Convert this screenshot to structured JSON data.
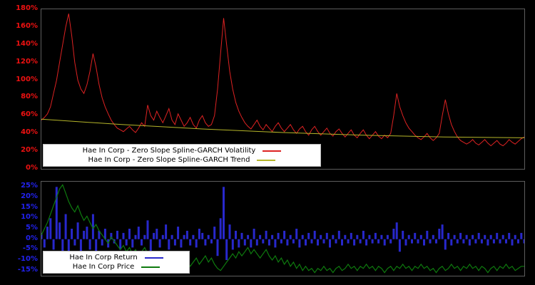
{
  "page": {
    "background": "#000000",
    "panel_border": "#5d5d5d"
  },
  "chart_data": [
    {
      "name": "volatility-chart",
      "type": "line",
      "ylim": [
        0,
        180
      ],
      "ytick_values": [
        0,
        20,
        40,
        60,
        80,
        100,
        120,
        140,
        160,
        180
      ],
      "ytick_labels": [
        "0%",
        "20%",
        "40%",
        "60%",
        "80%",
        "100%",
        "120%",
        "140%",
        "160%",
        "180%"
      ],
      "tick_color": "#ee1111",
      "grid": false,
      "legend_position": "bottom-left",
      "legend": [
        {
          "label": "Hae In Corp - Zero Slope Spline-GARCH Volatility",
          "color": "#dd2222"
        },
        {
          "label": "Hae In Corp - Zero Slope Spline-GARCH Trend",
          "color": "#b5b529"
        }
      ],
      "series": [
        {
          "name": "volatility",
          "render": "line",
          "color": "#dd2222",
          "width": 1,
          "values": [
            55,
            58,
            62,
            70,
            85,
            100,
            120,
            140,
            160,
            175,
            150,
            120,
            100,
            90,
            85,
            95,
            110,
            130,
            115,
            95,
            80,
            70,
            62,
            55,
            50,
            46,
            44,
            42,
            45,
            48,
            44,
            41,
            46,
            52,
            48,
            72,
            60,
            55,
            65,
            58,
            52,
            60,
            68,
            55,
            50,
            62,
            55,
            48,
            52,
            58,
            50,
            46,
            55,
            60,
            52,
            48,
            50,
            60,
            90,
            130,
            170,
            140,
            110,
            90,
            75,
            65,
            58,
            52,
            48,
            45,
            50,
            55,
            48,
            44,
            50,
            46,
            42,
            48,
            52,
            46,
            42,
            46,
            50,
            44,
            40,
            45,
            48,
            42,
            38,
            44,
            48,
            42,
            38,
            42,
            46,
            40,
            37,
            42,
            45,
            40,
            36,
            40,
            44,
            38,
            35,
            40,
            44,
            38,
            34,
            38,
            42,
            37,
            34,
            38,
            35,
            40,
            60,
            85,
            70,
            60,
            52,
            46,
            42,
            38,
            35,
            33,
            36,
            40,
            35,
            32,
            35,
            40,
            60,
            78,
            62,
            50,
            42,
            36,
            32,
            30,
            28,
            30,
            33,
            29,
            27,
            30,
            33,
            29,
            26,
            29,
            32,
            28,
            26,
            29,
            33,
            30,
            28,
            31,
            34,
            36
          ]
        },
        {
          "name": "trend",
          "render": "line",
          "color": "#b5b529",
          "width": 1,
          "values": [
            56,
            50,
            45,
            41,
            38,
            36,
            35
          ]
        }
      ]
    },
    {
      "name": "returns-chart",
      "type": "bar+line",
      "ylim": [
        -17.5,
        27.5
      ],
      "ytick_values": [
        -15,
        -10,
        -5,
        0,
        5,
        10,
        15,
        20,
        25
      ],
      "ytick_labels": [
        "-15%",
        "-10%",
        "-5%",
        "0%",
        "5%",
        "10%",
        "15%",
        "20%",
        "25%"
      ],
      "tick_color": "#2222ee",
      "grid": false,
      "legend_position": "bottom-left",
      "legend": [
        {
          "label": "Hae In Corp Return",
          "color": "#2828cc"
        },
        {
          "label": "Hae In Corp Price",
          "color": "#0e7a0e"
        }
      ],
      "series": [
        {
          "name": "return",
          "render": "bar",
          "color": "#2828cc",
          "values": [
            3,
            -4,
            6,
            10,
            -5,
            25,
            8,
            -6,
            12,
            -10,
            5,
            -3,
            8,
            -7,
            4,
            6,
            -5,
            12,
            -8,
            4,
            -3,
            5,
            -4,
            3,
            -2,
            4,
            -5,
            3,
            -3,
            5,
            -4,
            2,
            6,
            -3,
            2,
            9,
            -6,
            3,
            5,
            -4,
            2,
            7,
            -5,
            2,
            -3,
            6,
            -4,
            2,
            4,
            -3,
            2,
            -4,
            5,
            3,
            -3,
            2,
            -2,
            6,
            -8,
            10,
            25,
            -10,
            7,
            -5,
            4,
            -4,
            3,
            -3,
            2,
            -4,
            5,
            -3,
            2,
            -2,
            4,
            -3,
            2,
            -4,
            3,
            -2,
            4,
            -3,
            2,
            -2,
            5,
            -4,
            2,
            -3,
            3,
            -2,
            4,
            -3,
            2,
            -2,
            3,
            -4,
            2,
            -2,
            4,
            -3,
            2,
            -2,
            3,
            -3,
            2,
            -2,
            4,
            -3,
            2,
            -2,
            3,
            -2,
            2,
            -3,
            2,
            -2,
            5,
            8,
            -6,
            4,
            -3,
            2,
            -2,
            3,
            -2,
            2,
            -3,
            4,
            -2,
            2,
            -2,
            5,
            7,
            -5,
            3,
            -3,
            2,
            -2,
            3,
            -2,
            2,
            -3,
            2,
            -2,
            3,
            -2,
            2,
            -3,
            2,
            -2,
            3,
            -2,
            2,
            -2,
            3,
            -3,
            2,
            -2,
            3,
            -2
          ]
        },
        {
          "name": "price",
          "render": "line",
          "color": "#0e7a0e",
          "width": 1.2,
          "values": [
            2,
            5,
            8,
            12,
            16,
            20,
            24,
            26,
            22,
            18,
            15,
            13,
            16,
            12,
            9,
            11,
            8,
            5,
            7,
            4,
            2,
            0,
            -2,
            1,
            -1,
            -3,
            -5,
            -3,
            -6,
            -4,
            -7,
            -5,
            -8,
            -6,
            -4,
            -7,
            -9,
            -7,
            -10,
            -8,
            -11,
            -9,
            -12,
            -10,
            -13,
            -11,
            -14,
            -12,
            -10,
            -13,
            -11,
            -9,
            -12,
            -10,
            -8,
            -11,
            -9,
            -12,
            -14,
            -15,
            -13,
            -11,
            -9,
            -7,
            -9,
            -6,
            -8,
            -6,
            -4,
            -7,
            -5,
            -7,
            -9,
            -7,
            -5,
            -8,
            -10,
            -8,
            -11,
            -9,
            -12,
            -10,
            -13,
            -11,
            -14,
            -12,
            -15,
            -13,
            -15,
            -14,
            -16,
            -14,
            -15,
            -13,
            -15,
            -14,
            -16,
            -14,
            -13,
            -15,
            -14,
            -12,
            -14,
            -13,
            -15,
            -13,
            -14,
            -12,
            -14,
            -13,
            -15,
            -13,
            -14,
            -16,
            -14,
            -13,
            -15,
            -13,
            -14,
            -12,
            -14,
            -13,
            -15,
            -13,
            -14,
            -12,
            -14,
            -13,
            -15,
            -14,
            -16,
            -14,
            -13,
            -15,
            -14,
            -12,
            -14,
            -13,
            -15,
            -13,
            -14,
            -12,
            -14,
            -13,
            -15,
            -13,
            -14,
            -16,
            -14,
            -13,
            -15,
            -13,
            -14,
            -12,
            -14,
            -13,
            -15,
            -14,
            -13,
            -13
          ]
        }
      ]
    }
  ]
}
